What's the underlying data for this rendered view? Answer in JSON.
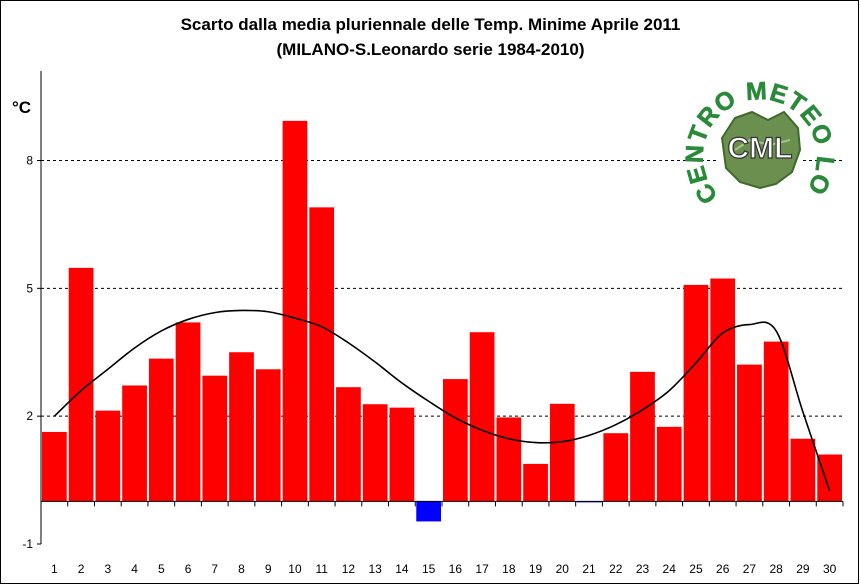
{
  "chart_data": {
    "type": "bar",
    "title": "Scarto dalla media pluriennale delle Temp. Minime Aprile 2011",
    "subtitle": "(MILANO-S.Leonardo serie 1984-2010)",
    "ylabel": "°C",
    "xlabel": "",
    "ylim": [
      -1,
      10.1
    ],
    "yticks": [
      -1,
      2,
      5,
      8
    ],
    "grid": "horizontal-dashed",
    "legend": "none",
    "categories": [
      "1",
      "2",
      "3",
      "4",
      "5",
      "6",
      "7",
      "8",
      "9",
      "10",
      "11",
      "12",
      "13",
      "14",
      "15",
      "16",
      "17",
      "18",
      "19",
      "20",
      "21",
      "22",
      "23",
      "24",
      "25",
      "26",
      "27",
      "28",
      "29",
      "30"
    ],
    "series": [
      {
        "type": "bar",
        "values": [
          1.63,
          5.48,
          2.13,
          2.72,
          3.35,
          4.2,
          2.95,
          3.5,
          3.1,
          8.93,
          6.9,
          2.68,
          2.28,
          2.2,
          -0.47,
          2.87,
          3.97,
          1.97,
          0.88,
          2.29,
          -0.02,
          1.6,
          3.04,
          1.75,
          5.08,
          5.23,
          3.21,
          3.75,
          1.47,
          1.1
        ],
        "colors": {
          "positive": "#ff0000",
          "negative": "#0000ff"
        }
      },
      {
        "type": "line",
        "values": [
          2.0,
          2.6,
          3.1,
          3.6,
          4.0,
          4.27,
          4.43,
          4.48,
          4.45,
          4.3,
          4.1,
          3.72,
          3.27,
          2.78,
          2.35,
          1.96,
          1.67,
          1.47,
          1.38,
          1.4,
          1.55,
          1.8,
          2.15,
          2.6,
          3.25,
          3.95,
          4.15,
          4.0,
          2.1,
          0.25
        ],
        "color": "#000000"
      }
    ]
  },
  "logo": {
    "arc_text": "CENTRO METEO LOMBARDO",
    "center_text": "CML",
    "color": "#2a8a3a"
  }
}
